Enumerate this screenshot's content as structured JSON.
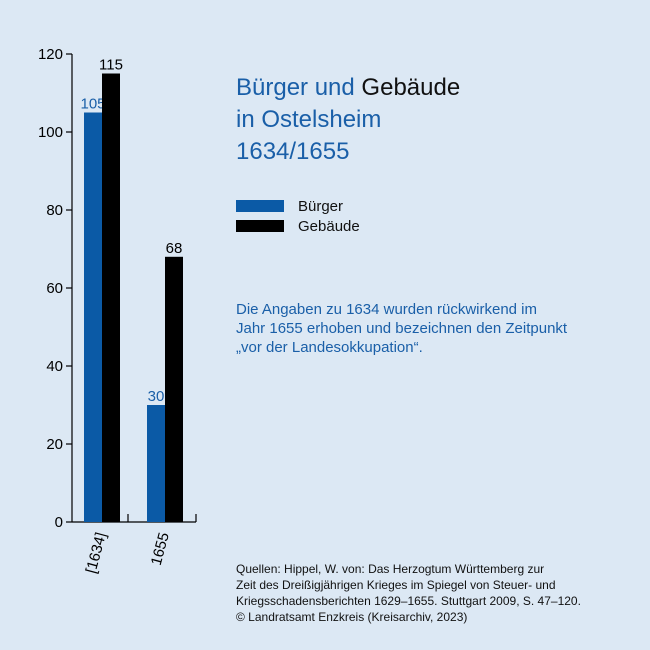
{
  "title": {
    "line1_blue": "Bürger und",
    "line1_dark": "Gebäude",
    "line2": "in Ostelsheim",
    "line3": "1634/1655"
  },
  "note": {
    "line1": "Die Angaben zu 1634 wurden rückwirkend im",
    "line2": "Jahr 1655 erhoben und bezeichnen den Zeitpunkt",
    "line3": "„vor der Landesokkupation“."
  },
  "sources": {
    "line1": "Quellen: Hippel, W. von: Das Herzogtum Württemberg zur",
    "line2": "Zeit des Dreißigjährigen Krieges im Spiegel von Steuer- und",
    "line3": "Kriegsschadensberichten 1629–1655. Stuttgart 2009, S. 47–120.",
    "line4": "© Landratsamt Enzkreis (Kreisarchiv, 2023)"
  },
  "colors": {
    "blue": "#0b5aa6",
    "black": "#000000",
    "background": "#dce8f4"
  },
  "chart_data": {
    "type": "bar",
    "categories": [
      "[1634]",
      "1655"
    ],
    "series": [
      {
        "name": "Bürger",
        "values": [
          105,
          30
        ],
        "color": "#0b5aa6"
      },
      {
        "name": "Gebäude",
        "values": [
          115,
          68
        ],
        "color": "#000000"
      }
    ],
    "yticks": [
      0,
      20,
      40,
      60,
      80,
      100,
      120
    ],
    "ylim": [
      0,
      120
    ],
    "legend": "right"
  }
}
